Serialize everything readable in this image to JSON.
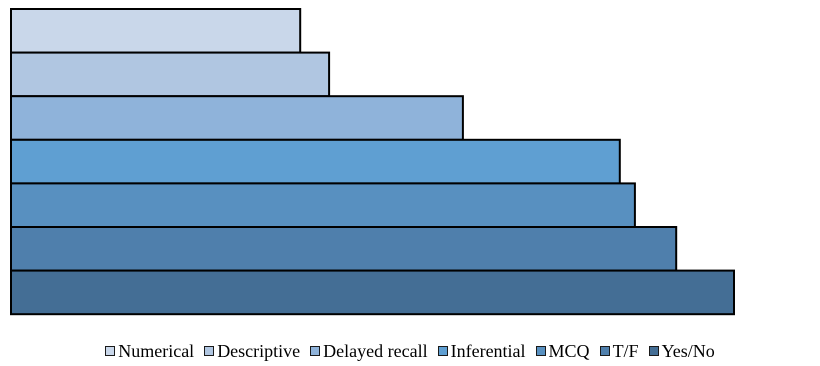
{
  "chart_data": {
    "type": "bar",
    "orientation": "horizontal",
    "layout": "stacked-rows-touching",
    "title": "",
    "xlabel": "",
    "ylabel": "",
    "axes_visible": false,
    "grid": false,
    "legend_position": "bottom",
    "xlim": [
      0,
      100
    ],
    "series": [
      {
        "name": "Numerical",
        "value": 40.0,
        "color": "#c9d7ea"
      },
      {
        "name": "Descriptive",
        "value": 44.0,
        "color": "#b0c6e1"
      },
      {
        "name": "Delayed recall",
        "value": 62.5,
        "color": "#8fb3da"
      },
      {
        "name": "Inferential",
        "value": 84.2,
        "color": "#5f9fd2"
      },
      {
        "name": "MCQ",
        "value": 86.3,
        "color": "#5890c0"
      },
      {
        "name": "T/F",
        "value": 92.0,
        "color": "#4f7fac"
      },
      {
        "name": "Yes/No",
        "value": 100.0,
        "color": "#446e95"
      }
    ]
  }
}
